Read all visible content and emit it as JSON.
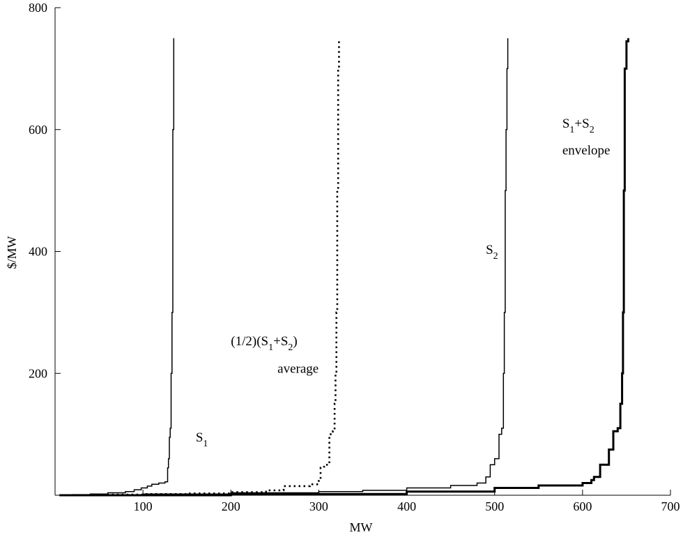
{
  "chart_data": {
    "type": "line",
    "xlabel": "MW",
    "ylabel": "$/MW",
    "xlim": [
      0,
      700
    ],
    "ylim": [
      0,
      800
    ],
    "xticks": [
      100,
      200,
      300,
      400,
      500,
      600,
      700
    ],
    "yticks": [
      200,
      400,
      600,
      800
    ],
    "grid": false,
    "legend": "none",
    "series": [
      {
        "name": "S1",
        "style": "solid-thin",
        "color": "#000000",
        "x": [
          5,
          20,
          40,
          60,
          80,
          90,
          98,
          105,
          110,
          118,
          125,
          128,
          129,
          130,
          131,
          132,
          133,
          134,
          135
        ],
        "y": [
          0,
          1,
          2,
          4,
          6,
          9,
          12,
          15,
          18,
          20,
          22,
          45,
          60,
          95,
          110,
          200,
          300,
          600,
          750
        ]
      },
      {
        "name": "(1/2)(S1+S2) average",
        "style": "dotted",
        "color": "#000000",
        "x": [
          10,
          50,
          100,
          150,
          200,
          240,
          260,
          290,
          300,
          302,
          306,
          312,
          316,
          318,
          319,
          320,
          321,
          322,
          323
        ],
        "y": [
          0,
          1,
          2,
          3,
          5,
          8,
          15,
          18,
          25,
          45,
          50,
          100,
          105,
          150,
          200,
          300,
          500,
          700,
          750
        ]
      },
      {
        "name": "S2",
        "style": "solid-thin",
        "color": "#000000",
        "x": [
          15,
          100,
          200,
          300,
          350,
          400,
          450,
          480,
          490,
          495,
          500,
          505,
          508,
          510,
          511,
          512,
          513,
          514,
          515
        ],
        "y": [
          0,
          2,
          4,
          6,
          8,
          12,
          16,
          20,
          30,
          50,
          60,
          100,
          110,
          200,
          300,
          500,
          600,
          700,
          750
        ]
      },
      {
        "name": "S1+S2 envelope",
        "style": "solid-thick",
        "color": "#000000",
        "x": [
          5,
          200,
          400,
          500,
          550,
          600,
          610,
          613,
          620,
          630,
          635,
          640,
          643,
          645,
          646,
          647,
          648,
          650,
          652
        ],
        "y": [
          0,
          2,
          6,
          12,
          16,
          20,
          25,
          30,
          50,
          75,
          105,
          110,
          150,
          200,
          300,
          500,
          700,
          745,
          750
        ]
      }
    ],
    "annotations": [
      {
        "main": "S",
        "sub": "1",
        "x": 160,
        "y": 88
      },
      {
        "main": "(1/2)(S",
        "sub": "1",
        "after": "+S",
        "sub2": "2",
        "tail": ")",
        "x": 200,
        "y": 246
      },
      {
        "line": "average",
        "x": 253,
        "y": 201
      },
      {
        "main": "S",
        "sub": "2",
        "x": 490,
        "y": 396
      },
      {
        "main": "S",
        "sub": "1",
        "after": "+S",
        "sub2": "2",
        "x": 577,
        "y": 603
      },
      {
        "line": "envelope",
        "x": 577,
        "y": 559
      }
    ]
  }
}
